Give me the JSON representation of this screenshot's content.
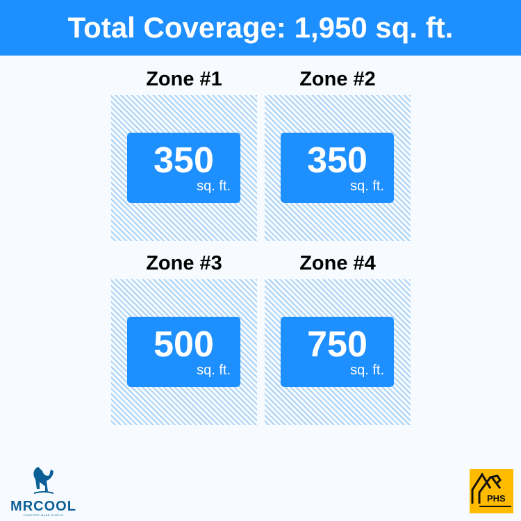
{
  "header": {
    "title": "Total Coverage: 1,950 sq. ft."
  },
  "zones": [
    {
      "title": "Zone #1",
      "value": "350",
      "unit": "sq. ft."
    },
    {
      "title": "Zone #2",
      "value": "350",
      "unit": "sq. ft."
    },
    {
      "title": "Zone #3",
      "value": "500",
      "unit": "sq. ft."
    },
    {
      "title": "Zone #4",
      "value": "750",
      "unit": "sq. ft."
    }
  ],
  "logos": {
    "mrcool_name": "MRCOOL",
    "mrcool_tagline": "COMFORT MADE SIMPLE",
    "phs": "PHS"
  },
  "colors": {
    "accent": "#1e8fff",
    "hatch": "#a9d2f7",
    "phs_bg": "#ffbb00",
    "mrcool": "#0d5e96"
  }
}
